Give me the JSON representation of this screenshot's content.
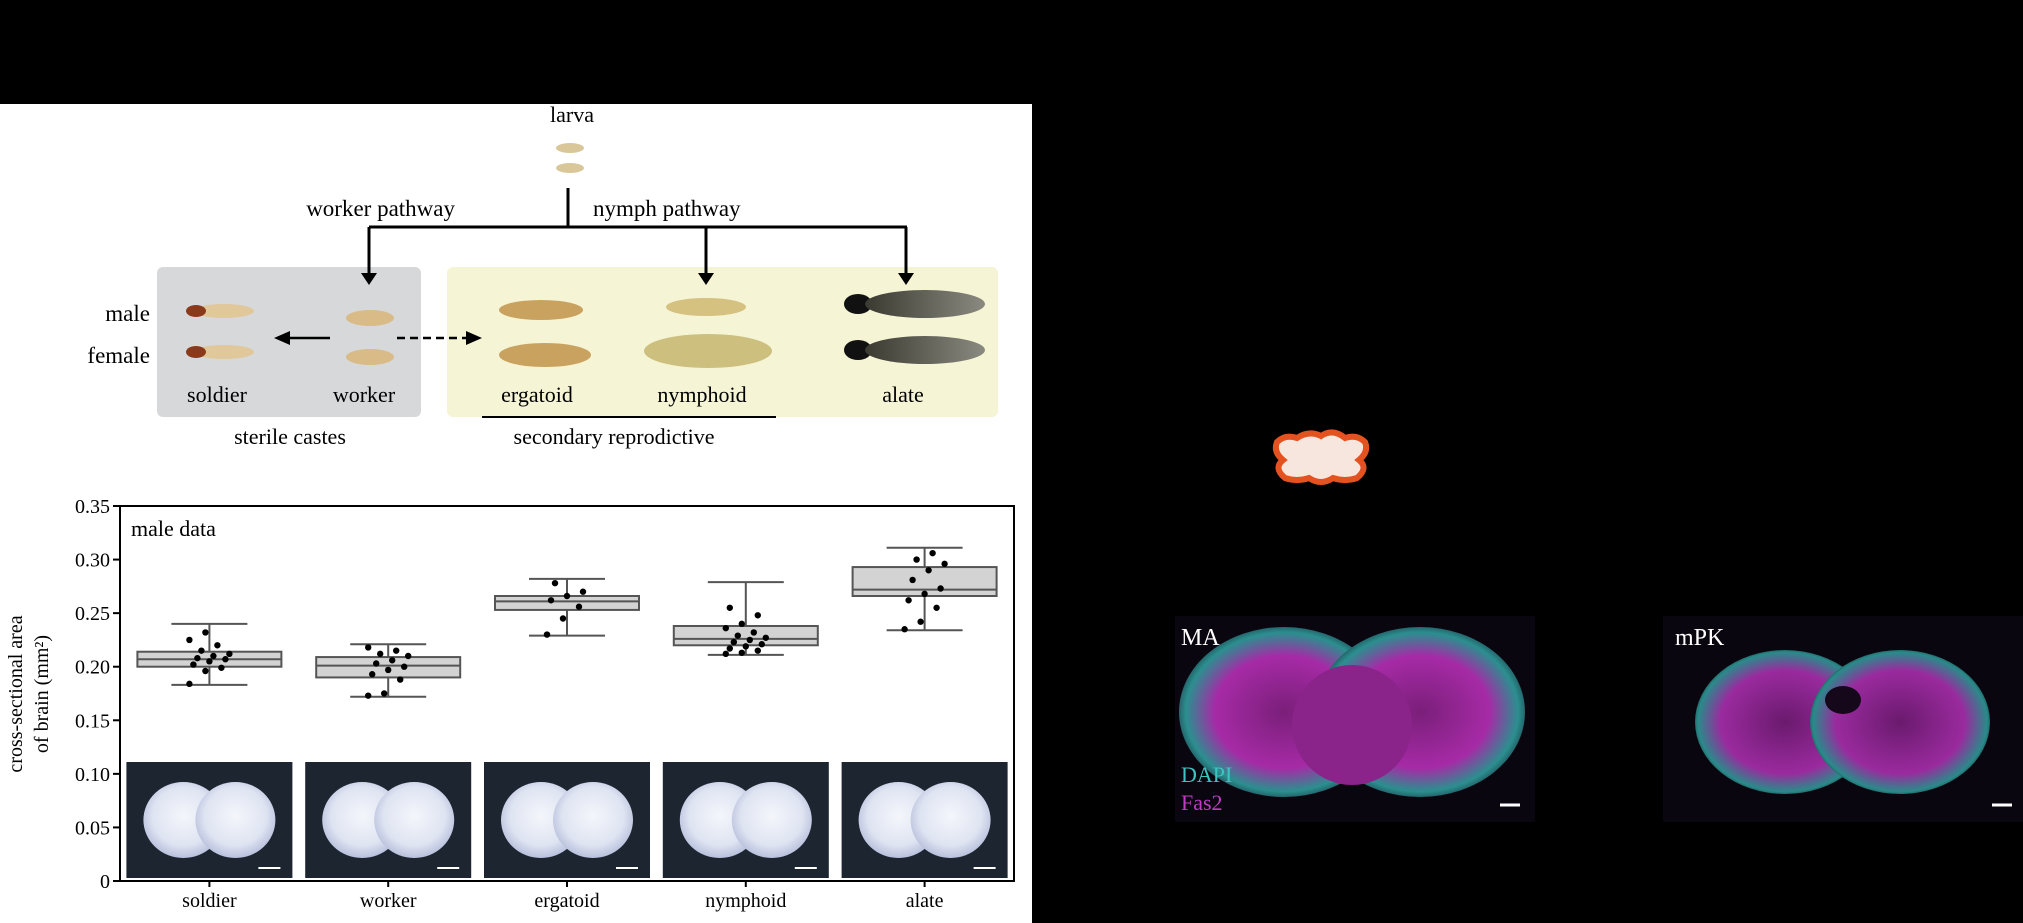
{
  "diagram": {
    "larva": "larva",
    "worker_pathway": "worker pathway",
    "nymph_pathway": "nymph pathway",
    "male": "male",
    "female": "female",
    "soldier": "soldier",
    "worker": "worker",
    "ergatoid": "ergatoid",
    "nymphoid": "nymphoid",
    "alate": "alate",
    "sterile_castes": "sterile castes",
    "secondary_reproductive": "secondary reprodictive"
  },
  "micro": {
    "left_label": "MA",
    "right_label": "mPK",
    "stain1": "DAPI",
    "stain2": "Fas2",
    "stain1_color": "#3fc3c0",
    "stain2_color": "#c23bc4"
  },
  "chart_data": {
    "type": "box",
    "annotation": "male data",
    "ylabel": "cross-sectional area of brain (mm²)",
    "ylabel_line1": "cross-sectional area",
    "ylabel_line2": "of brain (mm²)",
    "ylim": [
      0,
      0.35
    ],
    "yticks": [
      "0",
      "0.05",
      "0.10",
      "0.15",
      "0.20",
      "0.25",
      "0.30",
      "0.35"
    ],
    "categories": [
      "soldier",
      "worker",
      "ergatoid",
      "nymphoid",
      "alate"
    ],
    "boxes": [
      {
        "min": 0.183,
        "q1": 0.2,
        "median": 0.207,
        "q3": 0.214,
        "max": 0.24,
        "points": [
          0.184,
          0.196,
          0.199,
          0.202,
          0.205,
          0.207,
          0.208,
          0.21,
          0.212,
          0.215,
          0.22,
          0.225,
          0.232
        ]
      },
      {
        "min": 0.172,
        "q1": 0.19,
        "median": 0.201,
        "q3": 0.209,
        "max": 0.221,
        "points": [
          0.173,
          0.175,
          0.188,
          0.193,
          0.197,
          0.2,
          0.203,
          0.206,
          0.21,
          0.212,
          0.215,
          0.218
        ]
      },
      {
        "min": 0.229,
        "q1": 0.253,
        "median": 0.261,
        "q3": 0.266,
        "max": 0.282,
        "points": [
          0.23,
          0.245,
          0.256,
          0.262,
          0.266,
          0.27,
          0.278
        ]
      },
      {
        "min": 0.211,
        "q1": 0.22,
        "median": 0.226,
        "q3": 0.238,
        "max": 0.279,
        "points": [
          0.212,
          0.213,
          0.215,
          0.217,
          0.219,
          0.221,
          0.223,
          0.225,
          0.227,
          0.229,
          0.232,
          0.236,
          0.24,
          0.248,
          0.255
        ]
      },
      {
        "min": 0.234,
        "q1": 0.266,
        "median": 0.272,
        "q3": 0.293,
        "max": 0.311,
        "points": [
          0.235,
          0.242,
          0.255,
          0.262,
          0.268,
          0.273,
          0.281,
          0.29,
          0.296,
          0.3,
          0.306
        ]
      }
    ],
    "box_color": "#d3d3d3"
  }
}
